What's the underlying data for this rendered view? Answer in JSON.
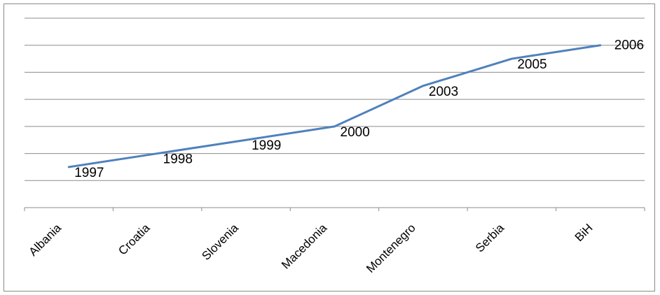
{
  "chart_data": {
    "type": "line",
    "title": "",
    "xlabel": "",
    "ylabel": "",
    "categories": [
      "Albania",
      "Croatia",
      "Slovenia",
      "Macedonia",
      "Montenegro",
      "Serbia",
      "BiH"
    ],
    "series": [
      {
        "name": "",
        "values": [
          1997,
          1998,
          1999,
          2000,
          2003,
          2005,
          2006
        ],
        "data_labels": [
          "1997",
          "1998",
          "1999",
          "2000",
          "2003",
          "2005",
          "2006"
        ],
        "color": "#4F81BD"
      }
    ],
    "ylim": [
      1994,
      2008
    ],
    "gridlines": true,
    "y_axis_labels_shown": false,
    "legend": "none"
  }
}
